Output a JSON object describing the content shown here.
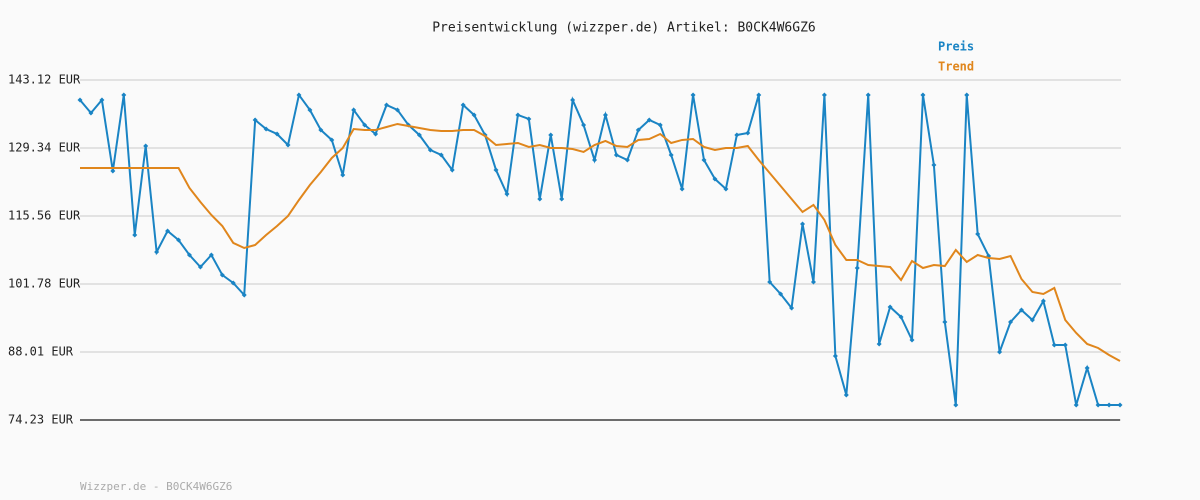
{
  "chart_data": {
    "type": "line",
    "title": "Preisentwicklung (wizzper.de) Artikel: B0CK4W6GZ6",
    "footer": "Wizzper.de - B0CK4W6GZ6",
    "ylim": [
      74.23,
      143.12
    ],
    "yticks": [
      {
        "value": 74.23,
        "label": "74.23 EUR"
      },
      {
        "value": 88.01,
        "label": "88.01 EUR"
      },
      {
        "value": 101.78,
        "label": "101.78 EUR"
      },
      {
        "value": 115.56,
        "label": "115.56 EUR"
      },
      {
        "value": 129.34,
        "label": "129.34 EUR"
      },
      {
        "value": 143.12,
        "label": "143.12 EUR"
      }
    ],
    "grid": true,
    "legend": "top-right",
    "series": [
      {
        "name": "Preis",
        "color": "#1a84c4",
        "markers": true,
        "values": [
          139.07,
          136.44,
          139.07,
          124.68,
          140.09,
          111.72,
          129.75,
          108.27,
          112.53,
          110.7,
          107.66,
          105.23,
          107.66,
          103.61,
          101.99,
          99.56,
          135.02,
          133.19,
          132.18,
          129.95,
          140.09,
          137.05,
          132.99,
          130.97,
          123.87,
          137.05,
          134.01,
          132.18,
          138.06,
          137.05,
          134.01,
          131.98,
          128.94,
          127.93,
          124.89,
          138.06,
          136.03,
          131.98,
          124.89,
          120.02,
          136.03,
          135.22,
          119.01,
          131.98,
          119.01,
          139.07,
          134.01,
          126.91,
          136.03,
          127.93,
          126.91,
          132.99,
          135.02,
          134.01,
          127.93,
          121.04,
          140.09,
          126.91,
          123.06,
          121.04,
          131.98,
          132.39,
          140.09,
          102.19,
          99.76,
          96.93,
          113.95,
          102.19,
          140.09,
          87.2,
          79.3,
          105.03,
          140.09,
          89.63,
          97.13,
          95.1,
          90.44,
          140.09,
          125.9,
          94.09,
          77.27,
          140.09,
          111.92,
          107.46,
          88.01,
          94.09,
          96.52,
          94.49,
          98.34,
          89.43,
          89.43,
          77.27,
          84.77,
          77.27,
          77.27,
          77.27
        ]
      },
      {
        "name": "Trend",
        "color": "#e0861c",
        "markers": false,
        "values": [
          125.29,
          125.29,
          125.29,
          125.29,
          125.29,
          125.29,
          125.29,
          125.29,
          125.29,
          125.29,
          121.24,
          118.4,
          115.77,
          113.54,
          110.1,
          109.08,
          109.69,
          111.72,
          113.54,
          115.57,
          118.81,
          121.85,
          124.48,
          127.32,
          129.35,
          133.19,
          132.99,
          132.99,
          133.6,
          134.21,
          133.8,
          133.4,
          132.99,
          132.79,
          132.79,
          132.99,
          132.99,
          131.78,
          129.95,
          130.16,
          130.36,
          129.55,
          129.95,
          129.35,
          129.35,
          129.14,
          128.54,
          129.95,
          130.77,
          129.75,
          129.55,
          130.97,
          131.17,
          132.18,
          130.36,
          130.97,
          131.17,
          129.55,
          128.94,
          129.35,
          129.35,
          129.75,
          126.91,
          124.28,
          121.65,
          119.01,
          116.38,
          117.8,
          114.76,
          109.69,
          106.65,
          106.65,
          105.64,
          105.43,
          105.23,
          102.6,
          106.45,
          105.03,
          105.64,
          105.43,
          108.68,
          106.25,
          107.66,
          107.06,
          106.85,
          107.46,
          102.8,
          100.17,
          99.76,
          100.98,
          94.49,
          91.86,
          89.63,
          88.82,
          87.4,
          86.19
        ]
      }
    ]
  }
}
